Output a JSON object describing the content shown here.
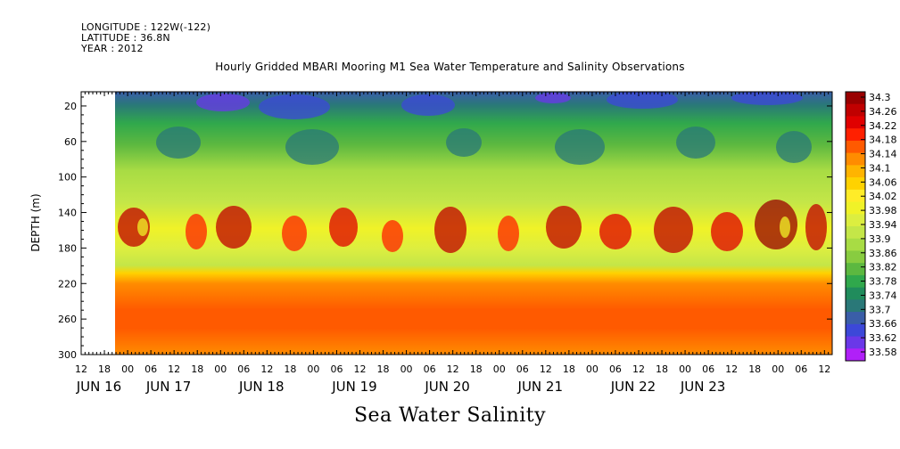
{
  "header": {
    "longitude": "LONGITUDE : 122W(-122)",
    "latitude": "LATITUDE : 36.8N",
    "year": "YEAR : 2012"
  },
  "chart_data": {
    "type": "heatmap",
    "title": "Hourly Gridded MBARI Mooring M1 Sea Water Temperature and Salinity Observations",
    "xlabel": "Sea Water Salinity",
    "ylabel": "DEPTH (m)",
    "y_ticks": [
      20,
      60,
      100,
      140,
      180,
      220,
      260,
      300
    ],
    "ylim": [
      300,
      4
    ],
    "x_hour_ticks": [
      "12",
      "18",
      "00",
      "06",
      "12",
      "18",
      "00",
      "06",
      "12",
      "18",
      "00",
      "06",
      "12",
      "18",
      "00",
      "06",
      "12",
      "18",
      "00",
      "06",
      "12",
      "18",
      "00",
      "06",
      "12",
      "18",
      "00",
      "06",
      "12",
      "18",
      "00",
      "06",
      "12"
    ],
    "x_day_labels": [
      "JUN 16",
      "JUN 17",
      "JUN 18",
      "JUN 19",
      "JUN 20",
      "JUN 21",
      "JUN 22",
      "JUN 23"
    ],
    "x_range_hours": [
      "2012-06-16 12:00",
      "2012-06-23 14:00"
    ],
    "data_start": "2012-06-16 21:00",
    "colorbar": {
      "ticks": [
        34.3,
        34.26,
        34.22,
        34.18,
        34.14,
        34.1,
        34.06,
        34.02,
        33.98,
        33.94,
        33.9,
        33.86,
        33.82,
        33.78,
        33.74,
        33.7,
        33.66,
        33.62,
        33.58
      ],
      "colors": [
        "#990000",
        "#c00000",
        "#e00000",
        "#ff2000",
        "#ff5a00",
        "#ff8c00",
        "#ffb400",
        "#ffd200",
        "#ffec28",
        "#f0f228",
        "#dcee40",
        "#c4e648",
        "#a8dc44",
        "#88cc40",
        "#5cb840",
        "#30a84c",
        "#208c5c",
        "#2a7878",
        "#3a5ea8",
        "#3c48d8",
        "#6a38e8",
        "#b020f8"
      ]
    },
    "depth_profile": [
      {
        "depth": 10,
        "salinity": 33.76
      },
      {
        "depth": 40,
        "salinity": 33.84
      },
      {
        "depth": 80,
        "salinity": 33.91
      },
      {
        "depth": 120,
        "salinity": 33.96
      },
      {
        "depth": 160,
        "salinity": 34.01
      },
      {
        "depth": 200,
        "salinity": 33.98
      },
      {
        "depth": 220,
        "salinity": 34.1
      },
      {
        "depth": 260,
        "salinity": 34.2
      },
      {
        "depth": 300,
        "salinity": 34.14
      }
    ]
  }
}
